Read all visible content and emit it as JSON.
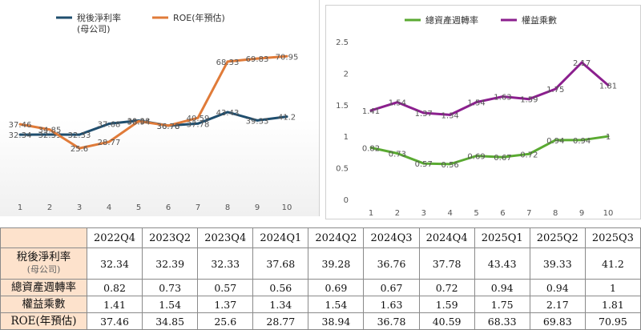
{
  "left_chart": {
    "legend": [
      {
        "name": "稅後淨利率",
        "name_line2": "(母公司)",
        "color": "#1f4e6e"
      },
      {
        "name": "ROE(年預估)",
        "color": "#e07b39"
      }
    ]
  },
  "right_chart": {
    "legend": [
      {
        "name": "總資產週轉率",
        "color": "#5aaa32"
      },
      {
        "name": "權益乘數",
        "color": "#8b1f8e"
      }
    ]
  },
  "chart_data": [
    {
      "type": "line",
      "x": [
        1,
        2,
        3,
        4,
        5,
        6,
        7,
        8,
        9,
        10
      ],
      "ylim": [
        0,
        90
      ],
      "grid": false,
      "legend_placement": "top",
      "series": [
        {
          "name": "稅後淨利率(母公司)",
          "color": "#1f4e6e",
          "values": [
            32.34,
            32.39,
            32.33,
            37.68,
            39.28,
            36.76,
            37.78,
            43.43,
            39.33,
            41.2
          ]
        },
        {
          "name": "ROE(年預估)",
          "color": "#e07b39",
          "values": [
            37.46,
            34.85,
            25.6,
            28.77,
            38.94,
            36.78,
            40.59,
            68.33,
            69.83,
            70.95
          ]
        }
      ]
    },
    {
      "type": "line",
      "x": [
        1,
        2,
        3,
        4,
        5,
        6,
        7,
        8,
        9,
        10
      ],
      "ylim": [
        0,
        2.5
      ],
      "yticks": [
        "0",
        "0.5",
        "1",
        "1.5",
        "2",
        "2.5"
      ],
      "grid": false,
      "legend_placement": "top",
      "series": [
        {
          "name": "總資產週轉率",
          "color": "#5aaa32",
          "values": [
            0.82,
            0.73,
            0.57,
            0.56,
            0.69,
            0.67,
            0.72,
            0.94,
            0.94,
            1
          ]
        },
        {
          "name": "權益乘數",
          "color": "#8b1f8e",
          "values": [
            1.41,
            1.54,
            1.37,
            1.34,
            1.54,
            1.63,
            1.59,
            1.75,
            2.17,
            1.81
          ]
        }
      ]
    }
  ],
  "table": {
    "columns": [
      "2022Q4",
      "2023Q2",
      "2023Q4",
      "2024Q1",
      "2024Q2",
      "2024Q3",
      "2024Q4",
      "2025Q1",
      "2025Q2",
      "2025Q3"
    ],
    "rows": {
      "margin": {
        "label": "稅後淨利率",
        "sublabel": "(母公司)",
        "cells": [
          "32.34",
          "32.39",
          "32.33",
          "37.68",
          "39.28",
          "36.76",
          "37.78",
          "43.43",
          "39.33",
          "41.2"
        ]
      },
      "turnover": {
        "label": "總資產週轉率",
        "cells": [
          "0.82",
          "0.73",
          "0.57",
          "0.56",
          "0.69",
          "0.67",
          "0.72",
          "0.94",
          "0.94",
          "1"
        ]
      },
      "equity": {
        "label": "權益乘數",
        "cells": [
          "1.41",
          "1.54",
          "1.37",
          "1.34",
          "1.54",
          "1.63",
          "1.59",
          "1.75",
          "2.17",
          "1.81"
        ]
      },
      "roe": {
        "label": "ROE(年預估)",
        "cells": [
          "37.46",
          "34.85",
          "25.6",
          "28.77",
          "38.94",
          "36.78",
          "40.59",
          "68.33",
          "69.83",
          "70.95"
        ]
      }
    }
  }
}
